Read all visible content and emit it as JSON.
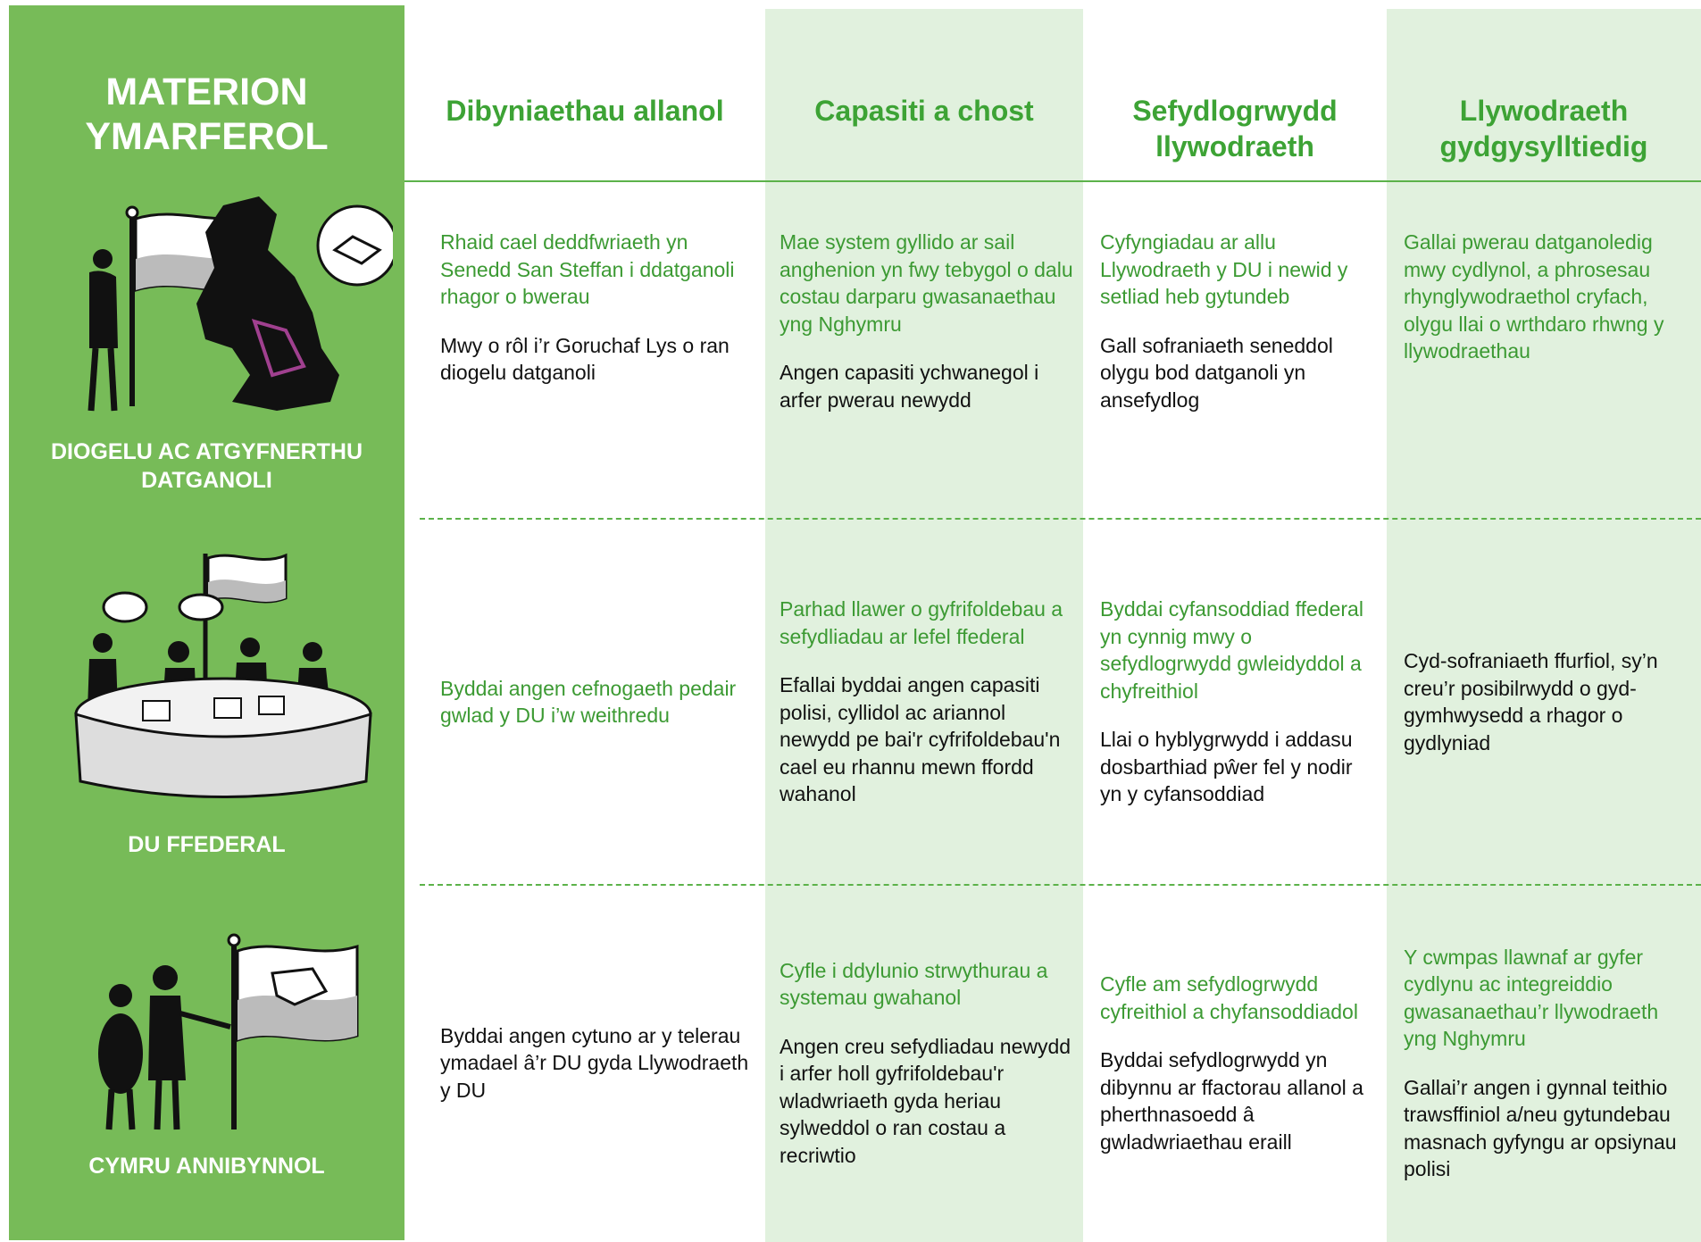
{
  "header": {
    "title_lines": [
      "MATERION",
      "YMARFEROL"
    ],
    "columns": [
      "Dibyniaethau allanol",
      "Capasiti a chost",
      "Sefydlogrwydd llywodraeth",
      "Llywodraeth gydgysylltiedig"
    ]
  },
  "rows": [
    {
      "label": "DIOGELU AC ATGYFNERTHU DATGANOLI",
      "align": "top",
      "cells": [
        [
          {
            "text": "Rhaid cael deddfwriaeth yn Senedd San Steffan i ddatganoli rhagor o bwerau",
            "color": "green"
          },
          {
            "text": "Mwy o rôl i’r Goruchaf Lys o ran diogelu datganoli",
            "color": "black"
          }
        ],
        [
          {
            "text": "Mae system gyllido ar sail anghenion yn fwy tebygol o dalu costau darparu gwasanaethau yng Nghymru",
            "color": "green"
          },
          {
            "text": "Angen capasiti ychwanegol i arfer pwerau newydd",
            "color": "black"
          }
        ],
        [
          {
            "text": "Cyfyngiadau ar allu Llywodraeth y DU i newid y setliad heb gytundeb",
            "color": "green"
          },
          {
            "text": "Gall sofraniaeth seneddol olygu bod datganoli yn ansefydlog",
            "color": "black"
          }
        ],
        [
          {
            "text": "Gallai pwerau datganoledig mwy cydlynol, a phrosesau rhynglywodraethol cryfach, olygu llai o wrthdaro rhwng y llywodraethau",
            "color": "green"
          }
        ]
      ]
    },
    {
      "label": "DU FFEDERAL",
      "align": "center",
      "cells": [
        [
          {
            "text": "Byddai angen cefnogaeth pedair gwlad y DU i’w weithredu",
            "color": "green"
          }
        ],
        [
          {
            "text": "Parhad llawer o gyfrifoldebau a sefydliadau ar lefel ffederal",
            "color": "green"
          },
          {
            "text": "Efallai byddai angen capasiti polisi, cyllidol ac ariannol newydd pe bai'r cyfrifoldebau'n cael eu rhannu mewn ffordd wahanol",
            "color": "black"
          }
        ],
        [
          {
            "text": "Byddai cyfansoddiad ffederal yn cynnig mwy o sefydlogrwydd gwleidyddol a chyfreithiol",
            "color": "green"
          },
          {
            "text": "Llai o hyblygrwydd i addasu dosbarthiad pŵer fel y nodir yn y cyfansoddiad",
            "color": "black"
          }
        ],
        [
          {
            "text": "Cyd-sofraniaeth ffurfiol, sy’n creu’r posibilrwydd o gyd-gymhwysedd a rhagor o gydlyniad",
            "color": "black"
          }
        ]
      ]
    },
    {
      "label": "CYMRU ANNIBYNNOL",
      "align": "center",
      "cells": [
        [
          {
            "text": "Byddai angen cytuno ar y telerau ymadael â’r DU gyda Llywodraeth y DU",
            "color": "black"
          }
        ],
        [
          {
            "text": "Cyfle i ddylunio strwythurau a systemau gwahanol",
            "color": "green"
          },
          {
            "text": "Angen creu sefydliadau newydd i arfer holl gyfrifoldebau'r wladwriaeth gyda heriau sylweddol o ran costau a recriwtio",
            "color": "black"
          }
        ],
        [
          {
            "text": "Cyfle am sefydlogrwydd cyfreithiol a chyfansoddiadol",
            "color": "green"
          },
          {
            "text": "Byddai sefydlogrwydd yn dibynnu ar ffactorau allanol a pherthnasoedd â gwladwriaethau eraill",
            "color": "black"
          }
        ],
        [
          {
            "text": "Y cwmpas llawnaf ar gyfer cydlynu ac integreiddio gwasanaethau’r llywodraeth yng Nghymru",
            "color": "green"
          },
          {
            "text": "Gallai’r angen i gynnal teithio trawsffiniol a/neu gytundebau masnach gyfyngu ar opsiynau polisi",
            "color": "black"
          }
        ]
      ]
    }
  ]
}
